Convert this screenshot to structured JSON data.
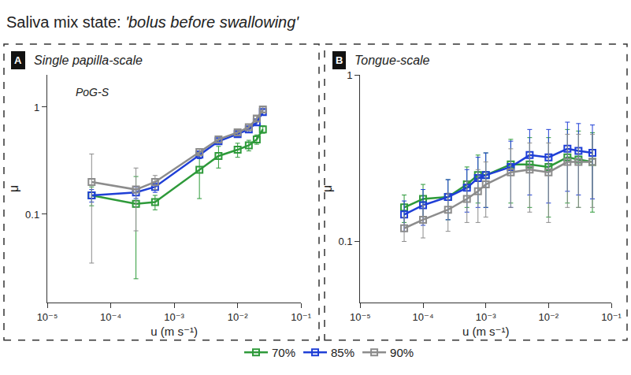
{
  "title": "Saliva mix state: 'bolus before swallowing'",
  "chart_data": [
    {
      "type": "line",
      "panel": "A",
      "title": "Single papilla-scale",
      "annotations": [
        "PoG-S"
      ],
      "x_label": "u (m s⁻¹)",
      "y_label": "μ",
      "log": true,
      "grid": false,
      "legend": "bottom",
      "marker": "square-open",
      "xlim": [
        1e-05,
        0.1
      ],
      "ylim": [
        0.015,
        2
      ],
      "xticks": [
        {
          "value": 1e-05,
          "label": "10⁻⁵"
        },
        {
          "value": 0.0001,
          "label": "10⁻⁴"
        },
        {
          "value": 0.001,
          "label": "10⁻³"
        },
        {
          "value": 0.01,
          "label": "10⁻²"
        },
        {
          "value": 0.1,
          "label": "10⁻¹"
        }
      ],
      "yticks": [
        0.1,
        1
      ],
      "x": [
        5e-05,
        0.00025,
        0.0005,
        0.0025,
        0.005,
        0.01,
        0.015,
        0.02,
        0.025
      ],
      "series": [
        {
          "name": "70%",
          "color": "#2e9a3a",
          "values": [
            0.15,
            0.125,
            0.13,
            0.26,
            0.35,
            0.4,
            0.44,
            0.5,
            0.62
          ],
          "errors": [
            0.03,
            0.1,
            0.02,
            0.12,
            0.08,
            0.06,
            0.05,
            0.05,
            0.05
          ]
        },
        {
          "name": "85%",
          "color": "#1f3fd6",
          "values": [
            0.15,
            0.16,
            0.18,
            0.36,
            0.48,
            0.56,
            0.62,
            0.72,
            0.9
          ],
          "errors": [
            0.02,
            0.02,
            0.02,
            0.03,
            0.03,
            0.03,
            0.04,
            0.04,
            0.05
          ]
        },
        {
          "name": "90%",
          "color": "#8c8c8c",
          "values": [
            0.2,
            0.17,
            0.2,
            0.38,
            0.5,
            0.58,
            0.65,
            0.78,
            0.95
          ],
          "errors": [
            0.165,
            0.1,
            0.03,
            0.03,
            0.03,
            0.03,
            0.04,
            0.04,
            0.05
          ]
        }
      ]
    },
    {
      "type": "line",
      "panel": "B",
      "title": "Tongue-scale",
      "x_label": "u (m s⁻¹)",
      "y_label": "μ",
      "log": true,
      "grid": false,
      "marker": "square-open",
      "xlim": [
        1e-05,
        0.1
      ],
      "ylim": [
        0.043,
        1
      ],
      "xticks": [
        {
          "value": 1e-05,
          "label": "10⁻⁵"
        },
        {
          "value": 0.0001,
          "label": "10⁻⁴"
        },
        {
          "value": 0.001,
          "label": "10⁻³"
        },
        {
          "value": 0.01,
          "label": "10⁻²"
        },
        {
          "value": 0.1,
          "label": "10⁻¹"
        }
      ],
      "yticks": [
        0.1,
        1
      ],
      "x": [
        5e-05,
        0.0001,
        0.00025,
        0.0005,
        0.00075,
        0.001,
        0.0025,
        0.005,
        0.01,
        0.02,
        0.03,
        0.05
      ],
      "series": [
        {
          "name": "70%",
          "color": "#2e9a3a",
          "values": [
            0.16,
            0.18,
            0.185,
            0.22,
            0.25,
            0.25,
            0.29,
            0.29,
            0.28,
            0.32,
            0.31,
            0.3
          ],
          "errors": [
            0.03,
            0.04,
            0.05,
            0.06,
            0.08,
            0.09,
            0.12,
            0.13,
            0.14,
            0.15,
            0.15,
            0.15
          ]
        },
        {
          "name": "85%",
          "color": "#1f3fd6",
          "values": [
            0.145,
            0.165,
            0.185,
            0.21,
            0.24,
            0.25,
            0.28,
            0.33,
            0.32,
            0.36,
            0.35,
            0.34
          ],
          "errors": [
            0.03,
            0.04,
            0.05,
            0.06,
            0.08,
            0.09,
            0.12,
            0.14,
            0.15,
            0.16,
            0.16,
            0.16
          ]
        },
        {
          "name": "90%",
          "color": "#8c8c8c",
          "values": [
            0.12,
            0.135,
            0.155,
            0.18,
            0.2,
            0.22,
            0.26,
            0.27,
            0.26,
            0.3,
            0.3,
            0.3
          ],
          "errors": [
            0.02,
            0.03,
            0.04,
            0.05,
            0.07,
            0.08,
            0.1,
            0.12,
            0.13,
            0.14,
            0.14,
            0.14
          ]
        }
      ]
    }
  ]
}
